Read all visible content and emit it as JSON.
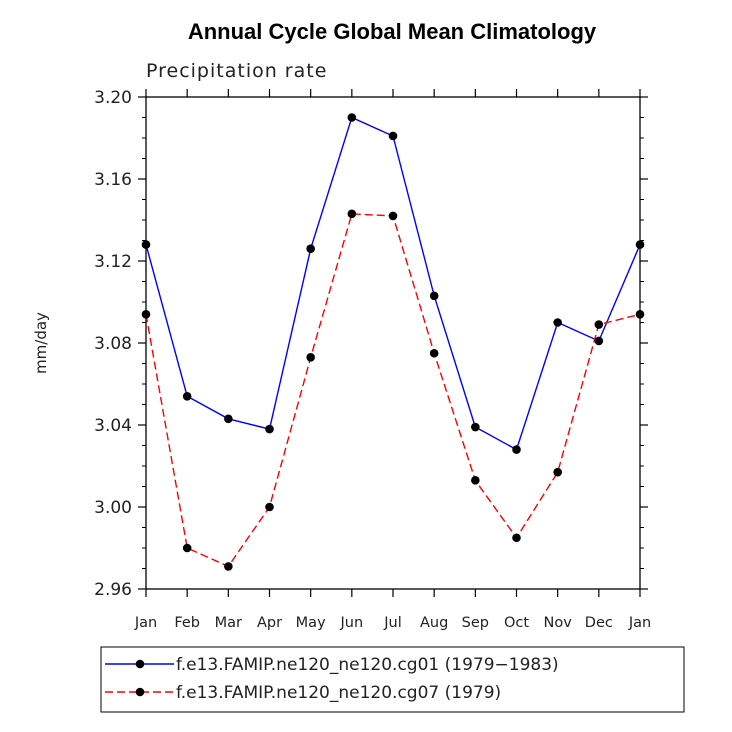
{
  "chart_data": {
    "type": "line",
    "title": "Annual Cycle Global Mean Climatology",
    "subtitle": "Precipitation rate",
    "xlabel": "",
    "ylabel": "mm/day",
    "ylim": [
      2.96,
      3.2
    ],
    "yticks": [
      2.96,
      3.0,
      3.04,
      3.08,
      3.12,
      3.16,
      3.2
    ],
    "ytick_labels": [
      "2.96",
      "3.00",
      "3.04",
      "3.08",
      "3.12",
      "3.16",
      "3.20"
    ],
    "categories": [
      "Jan",
      "Feb",
      "Mar",
      "Apr",
      "May",
      "Jun",
      "Jul",
      "Aug",
      "Sep",
      "Oct",
      "Nov",
      "Dec",
      "Jan"
    ],
    "series": [
      {
        "name": "f.e13.FAMIP.ne120_ne120.cg01 (1979−1983)",
        "color": "#0000ff",
        "style": "solid",
        "values": [
          3.128,
          3.054,
          3.043,
          3.038,
          3.126,
          3.19,
          3.181,
          3.103,
          3.039,
          3.028,
          3.09,
          3.081,
          3.128
        ]
      },
      {
        "name": "f.e13.FAMIP.ne120_ne120.cg07 (1979)",
        "color": "#ff0000",
        "style": "dashed",
        "values": [
          3.094,
          2.98,
          2.971,
          3.0,
          3.073,
          3.143,
          3.142,
          3.075,
          3.013,
          2.985,
          3.017,
          3.089,
          3.094
        ]
      }
    ],
    "legend_position": "bottom"
  }
}
